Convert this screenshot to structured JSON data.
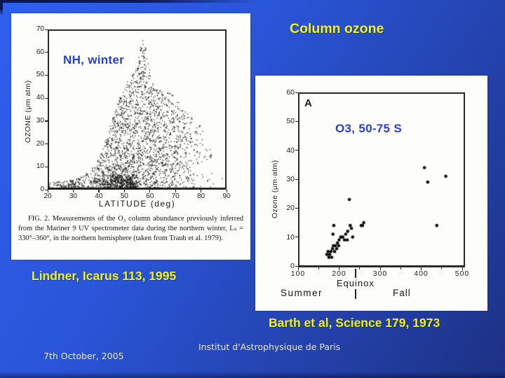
{
  "slide": {
    "title": "Column ozone",
    "citation_left": "Lindner, Icarus 113, 1995",
    "citation_right": "Barth et al, Science 179, 1973",
    "institute": "Institut d'Astrophysique de Paris",
    "date": "7th October, 2005",
    "colors": {
      "bg_top_left": "#2e5fee",
      "bg_bottom_right": "#1d3184",
      "title_yellow": "#f2f216",
      "pale_yellow": "#e9e9bc",
      "annotation_blue": "#2740d2",
      "panel_white": "#fdfdfc",
      "ink": "#1c1c1c"
    }
  },
  "left_panel": {
    "caption": "FIG. 2.   Measurements of the O₃ column abundance previously inferred from the Mariner 9 UV spectrometer data during the northern winter, Lₛ = 330°–360°, in the northern hemisphere (taken from Traub et al. 1979)."
  },
  "chart_data": [
    {
      "type": "scatter",
      "annotation": "NH, winter",
      "xlabel": "LATITUDE   (deg)",
      "ylabel": "OZONE (μm atm)",
      "xlim": [
        20,
        90
      ],
      "ylim": [
        0,
        70
      ],
      "xticks": [
        20,
        30,
        40,
        50,
        60,
        70,
        80,
        90
      ],
      "yticks": [
        0,
        10,
        20,
        30,
        40,
        50,
        60,
        70
      ],
      "description": "Dense cloud of ~2000+ Mariner 9 O3 column measurements vs latitude: ozone ~0-5 um atm equatorward of 40 deg, rising steeply 40-55 deg, peak ~65 um atm near 57-60 deg, decreasing to ~10-30 um atm by 80-88 deg, with a dense near-zero band between 36 and 55 deg",
      "cloud": {
        "seed": 20051007,
        "count": 2600,
        "power": 1.2,
        "bottom_frac": 0.26,
        "bottom_band": [
          36,
          55,
          6
        ],
        "mixture": [
          [
            56,
            8.5,
            0.46
          ],
          [
            48,
            5,
            0.28
          ],
          [
            67,
            8,
            0.18
          ],
          [
            29,
            5,
            0.08
          ]
        ],
        "envelope": [
          [
            20,
            3
          ],
          [
            30,
            4
          ],
          [
            34,
            6
          ],
          [
            38,
            10
          ],
          [
            41,
            16
          ],
          [
            44,
            26
          ],
          [
            47,
            36
          ],
          [
            49,
            42
          ],
          [
            51,
            47
          ],
          [
            53,
            50
          ],
          [
            55,
            56
          ],
          [
            56,
            61
          ],
          [
            57,
            66
          ],
          [
            58,
            64
          ],
          [
            59,
            58
          ],
          [
            60,
            52
          ],
          [
            61,
            47
          ],
          [
            63,
            44
          ],
          [
            65,
            43
          ],
          [
            68,
            42
          ],
          [
            70,
            40
          ],
          [
            72,
            37
          ],
          [
            74,
            34
          ],
          [
            77,
            31
          ],
          [
            80,
            28
          ],
          [
            82,
            24
          ],
          [
            84,
            18
          ],
          [
            86,
            12
          ],
          [
            88,
            8
          ]
        ]
      }
    },
    {
      "type": "scatter",
      "panel_label": "A",
      "annotation": "O3, 50-75 S",
      "ylabel": "Ozone (μm·atm)",
      "xlim": [
        100,
        500
      ],
      "ylim": [
        0,
        60
      ],
      "xticks": [
        100,
        200,
        300,
        400,
        500
      ],
      "xticks_minor": [
        150,
        250,
        350,
        450
      ],
      "yticks": [
        0,
        10,
        20,
        30,
        40,
        50,
        60
      ],
      "equinox_x": 240,
      "marker_label": "Equinox",
      "season_left": "Summer",
      "season_right": "Fall",
      "points": [
        [
          170,
          4
        ],
        [
          173,
          5
        ],
        [
          175,
          3
        ],
        [
          177,
          4
        ],
        [
          180,
          5
        ],
        [
          182,
          3
        ],
        [
          184,
          6
        ],
        [
          186,
          7
        ],
        [
          185,
          11
        ],
        [
          187,
          14
        ],
        [
          189,
          5
        ],
        [
          191,
          7
        ],
        [
          194,
          6
        ],
        [
          196,
          8
        ],
        [
          199,
          7
        ],
        [
          200,
          9
        ],
        [
          204,
          10
        ],
        [
          209,
          10
        ],
        [
          213,
          9
        ],
        [
          216,
          11
        ],
        [
          220,
          9
        ],
        [
          221,
          12
        ],
        [
          225,
          23
        ],
        [
          227,
          14
        ],
        [
          230,
          13
        ],
        [
          233,
          10
        ],
        [
          254,
          14
        ],
        [
          257,
          14
        ],
        [
          260,
          15
        ],
        [
          408,
          34
        ],
        [
          416,
          29
        ],
        [
          438,
          14
        ],
        [
          460,
          31
        ]
      ]
    }
  ]
}
